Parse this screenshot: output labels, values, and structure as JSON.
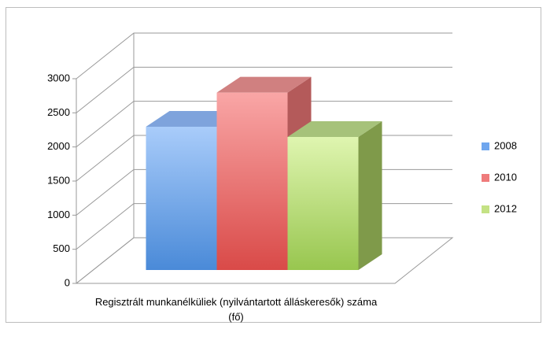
{
  "chart_data": {
    "type": "bar3d",
    "categories": [
      "Regisztrált munkanélküliek (nyilvántartott álláskeresők) száma (fő)"
    ],
    "series": [
      {
        "name": "2008",
        "color": "#6fa6ee",
        "values": [
          2100
        ]
      },
      {
        "name": "2010",
        "color": "#ef7b7b",
        "values": [
          2600
        ]
      },
      {
        "name": "2012",
        "color": "#c4e284",
        "values": [
          1950
        ]
      }
    ],
    "ylim": [
      0,
      3000
    ],
    "yticks": [
      0,
      500,
      1000,
      1500,
      2000,
      2500,
      3000
    ],
    "grid": true,
    "legend": "right"
  }
}
